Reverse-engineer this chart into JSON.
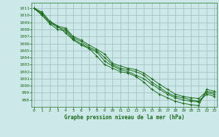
{
  "title": "Graphe pression niveau de la mer (hPa)",
  "xlabel_ticks": [
    0,
    1,
    2,
    3,
    4,
    5,
    6,
    7,
    8,
    9,
    10,
    11,
    12,
    13,
    14,
    15,
    16,
    17,
    18,
    19,
    20,
    21,
    22,
    23
  ],
  "ylim": [
    997.0,
    1011.8
  ],
  "xlim": [
    -0.3,
    23.3
  ],
  "yticks": [
    998,
    999,
    1000,
    1001,
    1002,
    1003,
    1004,
    1005,
    1006,
    1007,
    1008,
    1009,
    1010,
    1011
  ],
  "bg_color": "#cce8e8",
  "grid_color": "#99bbbb",
  "line_color": "#1a6b1a",
  "lines": [
    [
      1011.0,
      1010.5,
      1009.2,
      1008.5,
      1008.2,
      1007.0,
      1006.5,
      1005.8,
      1005.2,
      1004.5,
      1003.2,
      1002.8,
      1002.5,
      1002.3,
      1001.8,
      1001.0,
      1000.2,
      999.5,
      998.8,
      998.5,
      998.3,
      998.2,
      999.2,
      999.0
    ],
    [
      1011.0,
      1010.2,
      1009.0,
      1008.3,
      1008.0,
      1006.8,
      1006.3,
      1005.5,
      1005.0,
      1004.0,
      1003.0,
      1002.5,
      1002.3,
      1002.0,
      1001.5,
      1000.5,
      999.8,
      999.0,
      998.5,
      998.3,
      998.0,
      997.8,
      999.0,
      998.8
    ],
    [
      1011.0,
      1010.0,
      1008.8,
      1008.0,
      1007.8,
      1006.6,
      1006.0,
      1005.3,
      1004.8,
      1003.5,
      1002.8,
      1002.3,
      1002.0,
      1001.5,
      1001.0,
      1000.2,
      999.5,
      998.8,
      998.3,
      998.0,
      997.8,
      997.7,
      998.8,
      998.5
    ],
    [
      1011.0,
      1010.3,
      1009.0,
      1008.5,
      1007.5,
      1006.5,
      1005.8,
      1005.3,
      1004.2,
      1003.0,
      1002.5,
      1002.0,
      1001.8,
      1001.3,
      1000.5,
      999.5,
      998.8,
      998.3,
      997.8,
      997.5,
      997.3,
      997.2,
      999.5,
      999.2
    ]
  ]
}
